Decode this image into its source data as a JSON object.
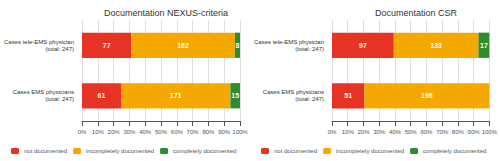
{
  "chart_data": [
    {
      "type": "bar",
      "title": "Documentation NEXUS-criteria",
      "orientation": "horizontal",
      "stacked": true,
      "categories": [
        "Cases tele-EMS physician\n(total: 247)",
        "Cases EMS physicians\n(total: 247)"
      ],
      "series": [
        {
          "name": "not documented",
          "color": "#e63323",
          "values": [
            31.1740890688,
            24.6963562753
          ],
          "counts": [
            77,
            61
          ]
        },
        {
          "name": "incompletely documented",
          "color": "#f5a800",
          "values": [
            65.5870445344,
            69.2307692308
          ],
          "counts": [
            162,
            171
          ]
        },
        {
          "name": "completely documented",
          "color": "#2e8b2e",
          "values": [
            3.2388663968,
            6.0728744939
          ],
          "counts": [
            8,
            15
          ]
        }
      ],
      "xlim": [
        0,
        100
      ],
      "xticks": [
        {
          "value": 0,
          "label": "0%"
        },
        {
          "value": 10,
          "label": "10%"
        },
        {
          "value": 20,
          "label": "20%"
        },
        {
          "value": 30,
          "label": "30%"
        },
        {
          "value": 40,
          "label": "40%"
        },
        {
          "value": 50,
          "label": "50%"
        },
        {
          "value": 60,
          "label": "60%"
        },
        {
          "value": 70,
          "label": "70%"
        },
        {
          "value": 80,
          "label": "80%"
        },
        {
          "value": 90,
          "label": "90%"
        },
        {
          "value": 100,
          "label": "100%"
        }
      ],
      "grid": true,
      "legend": "bottom"
    },
    {
      "type": "bar",
      "title": "Documentation CSR",
      "orientation": "horizontal",
      "stacked": true,
      "categories": [
        "Cases tele-EMS physician\n(total: 247)",
        "Cases EMS physicians\n(total: 247)"
      ],
      "series": [
        {
          "name": "not documented",
          "color": "#e63323",
          "values": [
            39.2712550607,
            20.6477732794
          ],
          "counts": [
            97,
            51
          ]
        },
        {
          "name": "incompletely documented",
          "color": "#f5a800",
          "values": [
            53.8461538462,
            79.3522267206
          ],
          "counts": [
            133,
            196
          ]
        },
        {
          "name": "completely documented",
          "color": "#2e8b2e",
          "values": [
            6.8825910931,
            0
          ],
          "counts": [
            17,
            0
          ]
        }
      ],
      "xlim": [
        0,
        100
      ],
      "xticks": [
        {
          "value": 0,
          "label": "0%"
        },
        {
          "value": 10,
          "label": "10%"
        },
        {
          "value": 20,
          "label": "20%"
        },
        {
          "value": 30,
          "label": "30%"
        },
        {
          "value": 40,
          "label": "40%"
        },
        {
          "value": 50,
          "label": "50%"
        },
        {
          "value": 60,
          "label": "60%"
        },
        {
          "value": 70,
          "label": "70%"
        },
        {
          "value": 80,
          "label": "80%"
        },
        {
          "value": 90,
          "label": "90%"
        },
        {
          "value": 100,
          "label": "100%"
        }
      ],
      "grid": true,
      "legend": "bottom"
    }
  ]
}
